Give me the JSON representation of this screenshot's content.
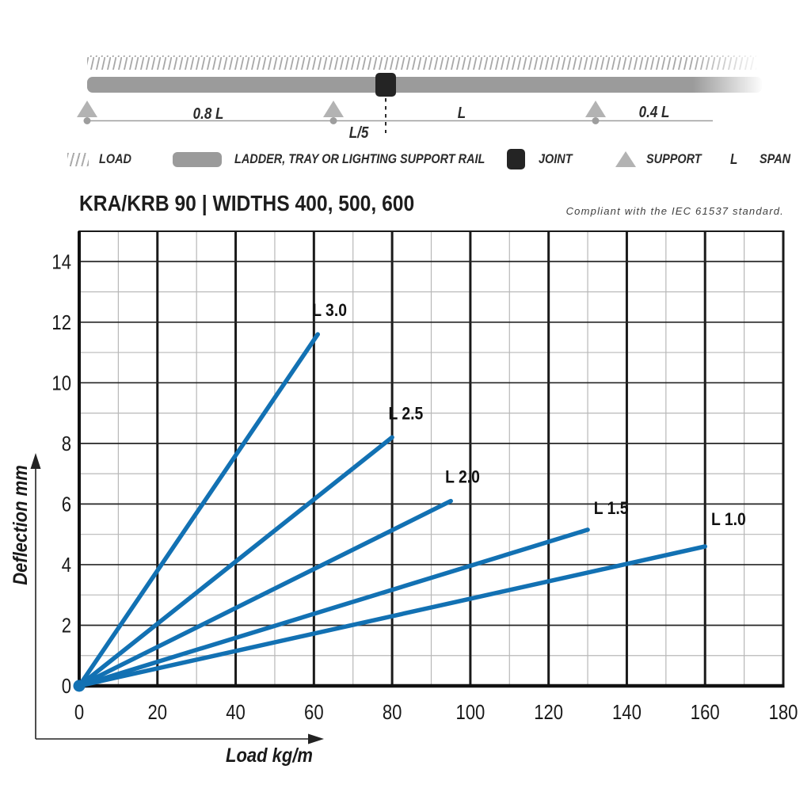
{
  "diagram": {
    "labels": {
      "left_span": "0.8 L",
      "joint_offset": "L/5",
      "mid_span": "L",
      "right_span": "0.4 L"
    }
  },
  "legend": {
    "items": [
      {
        "icon": "load-hatch-icon",
        "label": "LOAD"
      },
      {
        "icon": "rail-bar-icon",
        "label": "LADDER, TRAY OR LIGHTING SUPPORT RAIL"
      },
      {
        "icon": "joint-square-icon",
        "label": "JOINT"
      },
      {
        "icon": "support-triangle-icon",
        "label": "SUPPORT"
      },
      {
        "icon": "span-letter",
        "symbol": "L",
        "label": "SPAN"
      }
    ]
  },
  "header": {
    "title": "KRA/KRB 90 | WIDTHS 400, 500, 600",
    "compliance": "Compliant with the IEC 61537 standard."
  },
  "chart_data": {
    "type": "line",
    "title": "KRA/KRB 90 | WIDTHS 400, 500, 600",
    "xlabel": "Load kg/m",
    "ylabel": "Deflection mm",
    "xlim": [
      0,
      180
    ],
    "ylim": [
      0,
      15
    ],
    "x_ticks": [
      0,
      20,
      40,
      60,
      80,
      100,
      120,
      140,
      160,
      180
    ],
    "y_ticks": [
      0,
      2,
      4,
      6,
      8,
      10,
      12,
      14
    ],
    "x_minor_step": 10,
    "y_minor_step": 1,
    "grid": true,
    "legend_position": "inline-labels",
    "line_color": "#1271b3",
    "series": [
      {
        "name": "L 3.0",
        "x": [
          0,
          61
        ],
        "y": [
          0,
          11.6
        ],
        "label_at": [
          64,
          12.2
        ]
      },
      {
        "name": "L 2.5",
        "x": [
          0,
          80
        ],
        "y": [
          0,
          8.2
        ],
        "label_at": [
          83.5,
          8.8
        ]
      },
      {
        "name": "L 2.0",
        "x": [
          0,
          95
        ],
        "y": [
          0,
          6.1
        ],
        "label_at": [
          98,
          6.7
        ]
      },
      {
        "name": "L 1.5",
        "x": [
          0,
          130
        ],
        "y": [
          0,
          5.15
        ],
        "label_at": [
          136,
          5.67
        ]
      },
      {
        "name": "L 1.0",
        "x": [
          0,
          160
        ],
        "y": [
          0,
          4.6
        ],
        "label_at": [
          166,
          5.3
        ]
      }
    ]
  },
  "colors": {
    "line_blue": "#1271b3",
    "rail_gray": "#9b9b9b",
    "support_gray": "#b3b3b3",
    "joint_black": "#242424",
    "hatch_gray": "#a8a8a8",
    "major_grid": "#1a1a1a",
    "minor_grid": "#b8b8b8"
  }
}
